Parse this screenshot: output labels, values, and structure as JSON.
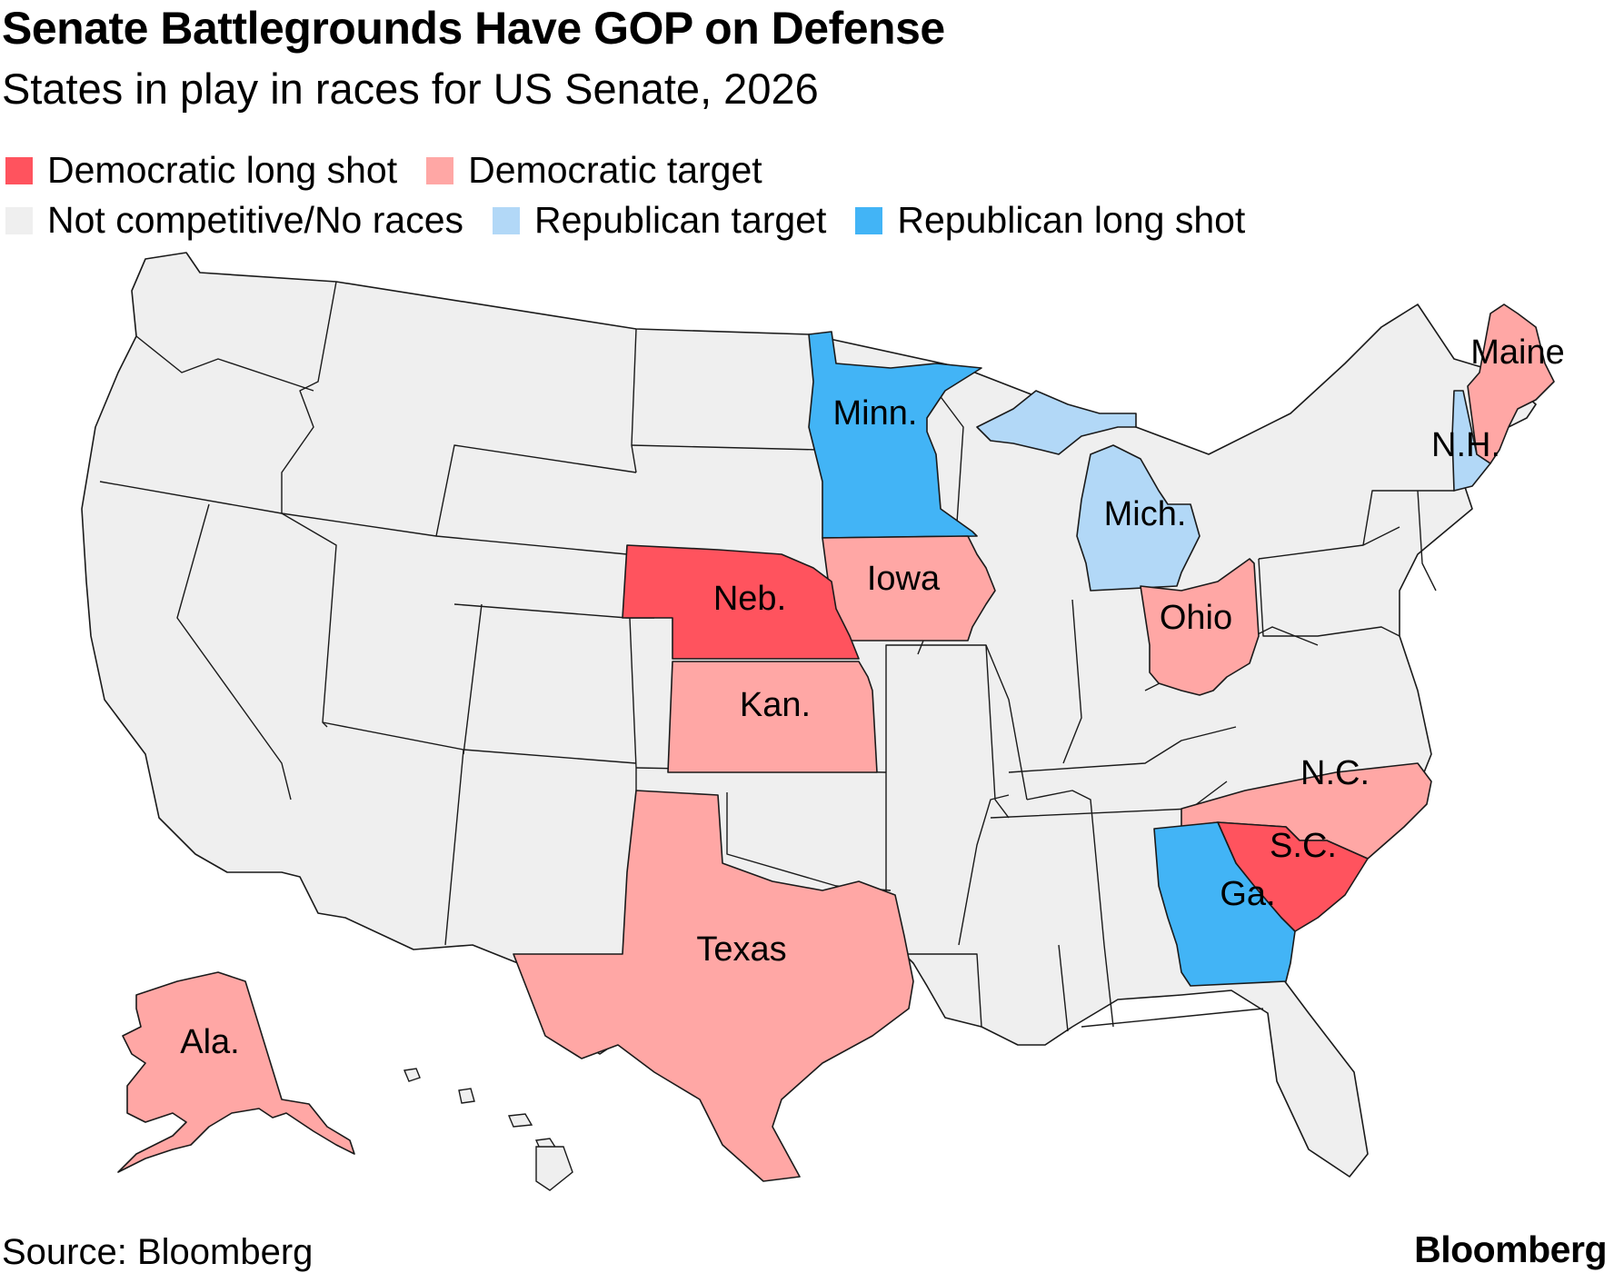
{
  "title": "Senate Battlegrounds Have GOP on Defense",
  "subtitle": "States in play in races for US Senate, 2026",
  "legend": [
    {
      "key": "dem_long_shot",
      "label": "Democratic long shot",
      "color": "#ff535e"
    },
    {
      "key": "dem_target",
      "label": "Democratic target",
      "color": "#ffa7a5"
    },
    {
      "key": "not_competitive",
      "label": "Not competitive/No races",
      "color": "#efefef"
    },
    {
      "key": "rep_target",
      "label": "Republican target",
      "color": "#b2d8f7"
    },
    {
      "key": "rep_long_shot",
      "label": "Republican long shot",
      "color": "#42b4f6"
    }
  ],
  "states": [
    {
      "name": "Minn.",
      "category": "rep_long_shot"
    },
    {
      "name": "Ga.",
      "category": "rep_long_shot"
    },
    {
      "name": "Mich.",
      "category": "rep_target"
    },
    {
      "name": "N.H.",
      "category": "rep_target"
    },
    {
      "name": "Neb.",
      "category": "dem_long_shot"
    },
    {
      "name": "S.C.",
      "category": "dem_long_shot"
    },
    {
      "name": "Iowa",
      "category": "dem_target"
    },
    {
      "name": "Ohio",
      "category": "dem_target"
    },
    {
      "name": "Kan.",
      "category": "dem_target"
    },
    {
      "name": "Texas",
      "category": "dem_target"
    },
    {
      "name": "N.C.",
      "category": "dem_target"
    },
    {
      "name": "Maine",
      "category": "dem_target"
    },
    {
      "name": "Ala.",
      "category": "dem_target"
    }
  ],
  "source": "Source: Bloomberg",
  "brand": "Bloomberg"
}
